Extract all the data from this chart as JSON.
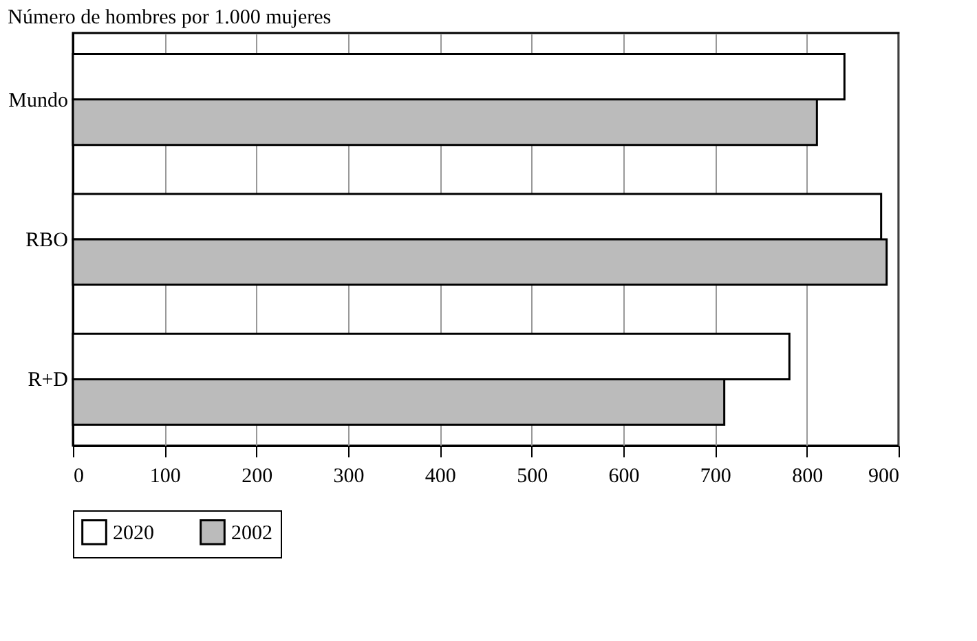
{
  "chart_data": {
    "type": "bar",
    "orientation": "horizontal",
    "title": "Número de hombres por 1.000 mujeres",
    "categories": [
      "Mundo",
      "RBO",
      "R+D"
    ],
    "series": [
      {
        "name": "2020",
        "color": "#ffffff",
        "values": [
          841,
          881,
          781
        ]
      },
      {
        "name": "2002",
        "color": "#bbbbbb",
        "values": [
          811,
          887,
          710
        ]
      }
    ],
    "xlim": [
      0,
      900
    ],
    "xticks": [
      0,
      100,
      200,
      300,
      400,
      500,
      600,
      700,
      800,
      900
    ],
    "grid": "x",
    "legend": "bottom"
  }
}
